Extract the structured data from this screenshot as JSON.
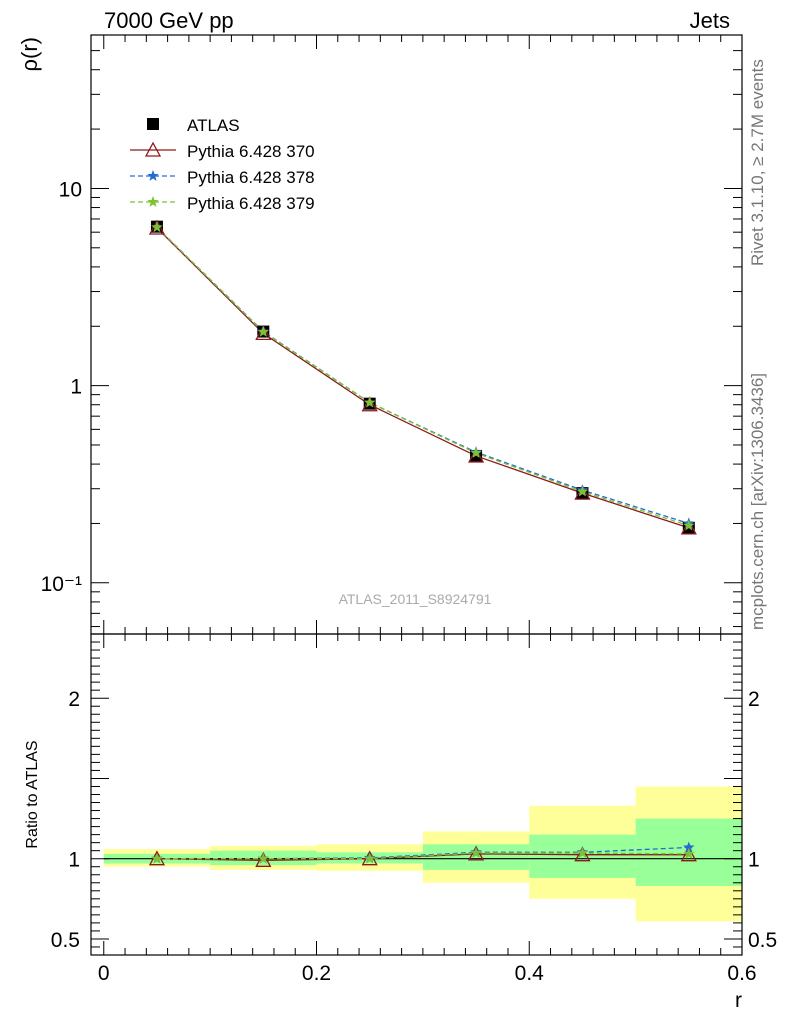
{
  "header": {
    "left": "7000 GeV pp",
    "right": "Jets"
  },
  "side_labels": {
    "upper": "Rivet 3.1.10, ≥ 2.7M events",
    "lower": "mcplots.cern.ch [arXiv:1306.3436]"
  },
  "analysis_label": "ATLAS_2011_S8924791",
  "chart_data": [
    {
      "type": "line",
      "panel": "main",
      "ylabel": "ρ(r)",
      "xlabel": "",
      "yscale": "log",
      "ylim": [
        0.055,
        60
      ],
      "xlim": [
        -0.012,
        0.6
      ],
      "ytick_labels": [
        "10",
        "1",
        "10⁻¹"
      ],
      "legend_position": "top-left",
      "x": [
        0.05,
        0.15,
        0.25,
        0.35,
        0.45,
        0.55
      ],
      "series": [
        {
          "name": "ATLAS",
          "values": [
            6.4,
            1.88,
            0.81,
            0.44,
            0.285,
            0.19
          ],
          "color": "#000000",
          "marker": "square",
          "dash": "none"
        },
        {
          "name": "Pythia 6.428 370",
          "values": [
            6.3,
            1.84,
            0.8,
            0.44,
            0.285,
            0.19
          ],
          "color": "#8b1a1a",
          "marker": "triangle-open",
          "dash": "solid"
        },
        {
          "name": "Pythia 6.428 378",
          "values": [
            6.35,
            1.88,
            0.82,
            0.46,
            0.295,
            0.2
          ],
          "color": "#1f6fd1",
          "marker": "star",
          "dash": "dashed"
        },
        {
          "name": "Pythia 6.428 379",
          "values": [
            6.35,
            1.87,
            0.82,
            0.455,
            0.29,
            0.195
          ],
          "color": "#7ec233",
          "marker": "star",
          "dash": "dashed"
        }
      ]
    },
    {
      "type": "line",
      "panel": "ratio",
      "ylabel": "Ratio to ATLAS",
      "xlabel": "r",
      "ylim": [
        0.4,
        2.4
      ],
      "xlim": [
        -0.012,
        0.6
      ],
      "ytick_labels": [
        "2",
        "1",
        "0.5"
      ],
      "xtick_labels": [
        "0",
        "0.2",
        "0.4",
        "0.6"
      ],
      "bins": [
        [
          0.0,
          0.1
        ],
        [
          0.1,
          0.2
        ],
        [
          0.2,
          0.3
        ],
        [
          0.3,
          0.4
        ],
        [
          0.4,
          0.5
        ],
        [
          0.5,
          0.6
        ]
      ],
      "band_yellow": [
        [
          0.95,
          1.06
        ],
        [
          0.93,
          1.08
        ],
        [
          0.925,
          1.09
        ],
        [
          0.85,
          1.17
        ],
        [
          0.75,
          1.33
        ],
        [
          0.61,
          1.45
        ]
      ],
      "band_green": [
        [
          0.97,
          1.03
        ],
        [
          0.96,
          1.05
        ],
        [
          0.97,
          1.04
        ],
        [
          0.93,
          1.09
        ],
        [
          0.88,
          1.15
        ],
        [
          0.83,
          1.25
        ]
      ],
      "x": [
        0.05,
        0.15,
        0.25,
        0.35,
        0.45,
        0.55
      ],
      "series": [
        {
          "name": "Pythia 6.428 370",
          "values": [
            1.0,
            0.99,
            1.0,
            1.03,
            1.025,
            1.025
          ],
          "color": "#8b1a1a",
          "marker": "triangle-open",
          "dash": "solid"
        },
        {
          "name": "Pythia 6.428 378",
          "values": [
            1.0,
            1.0,
            1.005,
            1.04,
            1.04,
            1.07
          ],
          "color": "#1f6fd1",
          "marker": "star",
          "dash": "dashed"
        },
        {
          "name": "Pythia 6.428 379",
          "values": [
            1.0,
            1.0,
            1.0,
            1.035,
            1.035,
            1.03
          ],
          "color": "#7ec233",
          "marker": "star",
          "dash": "dashed"
        }
      ]
    }
  ]
}
